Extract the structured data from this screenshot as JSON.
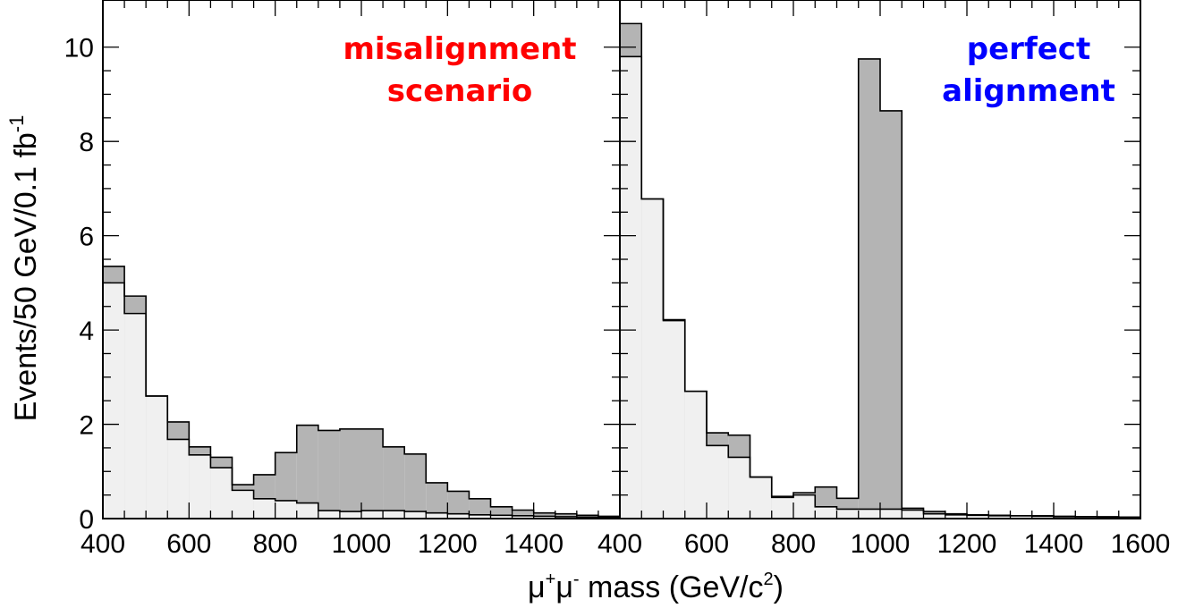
{
  "chart_data": {
    "type": "area",
    "ylabel_main": "Events/50 GeV/0.1 fb",
    "ylabel_sup": "-1",
    "xlabel": {
      "mu1": "μ",
      "sup1": "+",
      "mu2": "μ",
      "sup2": "-",
      "rest": " mass (GeV/c",
      "sup3": "2",
      "close": ")"
    },
    "ylim": [
      0,
      11
    ],
    "yticks": [
      "0",
      "2",
      "4",
      "6",
      "8",
      "10"
    ],
    "colors": {
      "signal_fill": "#b4b4b4",
      "background_fill": "#f0f0f0",
      "line": "#000000"
    },
    "panels": [
      {
        "annotation": [
          "misalignment",
          "scenario"
        ],
        "annotation_color": "#ff0000",
        "xlim": [
          400,
          1600
        ],
        "xtick_labels": [
          "400",
          "600",
          "800",
          "1000",
          "1200",
          "1400"
        ],
        "bin_edges": [
          400,
          450,
          500,
          550,
          600,
          650,
          700,
          750,
          800,
          850,
          900,
          950,
          1000,
          1050,
          1100,
          1150,
          1200,
          1250,
          1300,
          1350,
          1400,
          1450,
          1500,
          1550,
          1600
        ],
        "total": [
          5.35,
          4.72,
          2.6,
          2.05,
          1.52,
          1.3,
          0.72,
          0.93,
          1.4,
          1.98,
          1.87,
          1.9,
          1.9,
          1.52,
          1.37,
          0.76,
          0.58,
          0.42,
          0.25,
          0.18,
          0.12,
          0.1,
          0.07,
          0.05
        ],
        "background": [
          5.0,
          4.35,
          2.6,
          1.68,
          1.35,
          1.08,
          0.6,
          0.42,
          0.38,
          0.33,
          0.17,
          0.15,
          0.17,
          0.17,
          0.15,
          0.12,
          0.1,
          0.08,
          0.07,
          0.06,
          0.05,
          0.04,
          0.03,
          0.03
        ]
      },
      {
        "annotation": [
          "perfect",
          "alignment"
        ],
        "annotation_color": "#0000ff",
        "xlim": [
          400,
          1600
        ],
        "xtick_labels": [
          "400",
          "600",
          "800",
          "1000",
          "1200",
          "1400",
          "1600"
        ],
        "bin_edges": [
          400,
          450,
          500,
          550,
          600,
          650,
          700,
          750,
          800,
          850,
          900,
          950,
          1000,
          1050,
          1100,
          1150,
          1200,
          1250,
          1300,
          1350,
          1400,
          1450,
          1500,
          1550,
          1600
        ],
        "total": [
          10.5,
          6.78,
          4.22,
          2.7,
          1.82,
          1.77,
          0.88,
          0.47,
          0.55,
          0.67,
          0.43,
          9.75,
          8.65,
          0.22,
          0.15,
          0.1,
          0.08,
          0.07,
          0.06,
          0.06,
          0.05,
          0.04,
          0.04,
          0.03
        ],
        "background": [
          9.8,
          6.78,
          4.2,
          2.7,
          1.55,
          1.3,
          0.88,
          0.45,
          0.5,
          0.25,
          0.2,
          0.2,
          0.2,
          0.18,
          0.1,
          0.08,
          0.07,
          0.06,
          0.06,
          0.05,
          0.04,
          0.04,
          0.03,
          0.03
        ]
      }
    ]
  }
}
